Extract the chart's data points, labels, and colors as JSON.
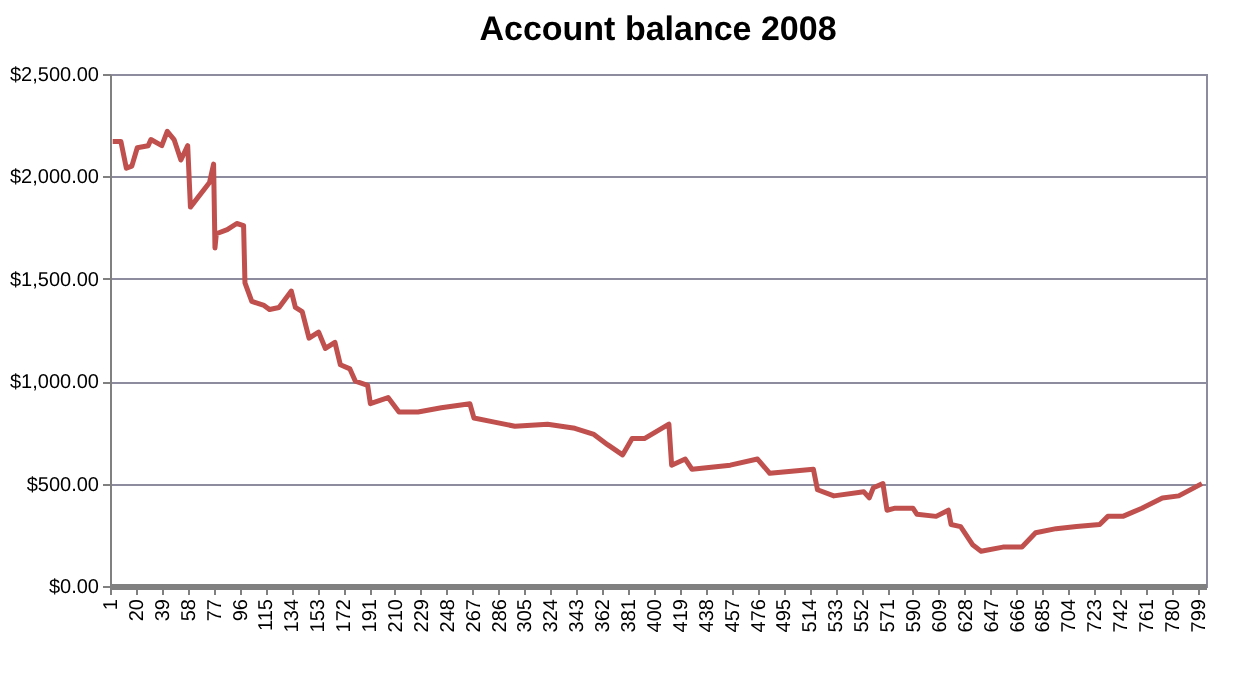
{
  "chart_data": {
    "type": "line",
    "title": "Account balance 2008",
    "x": [
      3,
      9,
      13,
      17,
      21,
      29,
      31,
      39,
      43,
      48,
      53,
      58,
      60,
      74,
      77,
      78,
      79,
      87,
      94,
      99,
      100,
      105,
      114,
      118,
      125,
      134,
      137,
      142,
      147,
      154,
      159,
      166,
      170,
      177,
      181,
      190,
      192,
      205,
      213,
      227,
      244,
      265,
      268,
      283,
      298,
      322,
      342,
      356,
      366,
      377,
      384,
      393,
      411,
      413,
      423,
      428,
      456,
      476,
      485,
      517,
      520,
      532,
      554,
      558,
      561,
      568,
      571,
      577,
      590,
      593,
      607,
      616,
      618,
      625,
      634,
      640,
      656,
      670,
      680,
      695,
      710,
      727,
      733,
      744,
      758,
      773,
      785,
      802
    ],
    "series": [
      {
        "color": "#c0504d",
        "values": [
          2170,
          2170,
          2040,
          2050,
          2140,
          2150,
          2180,
          2150,
          2220,
          2180,
          2080,
          2150,
          1850,
          1970,
          2060,
          1650,
          1720,
          1740,
          1770,
          1760,
          1480,
          1390,
          1370,
          1350,
          1360,
          1440,
          1360,
          1340,
          1210,
          1240,
          1160,
          1190,
          1080,
          1060,
          1000,
          980,
          890,
          920,
          850,
          850,
          870,
          890,
          820,
          800,
          780,
          790,
          770,
          740,
          690,
          640,
          720,
          720,
          790,
          590,
          620,
          570,
          590,
          620,
          550,
          570,
          470,
          440,
          460,
          430,
          480,
          500,
          370,
          380,
          380,
          350,
          340,
          370,
          300,
          290,
          200,
          170,
          190,
          190,
          260,
          280,
          290,
          300,
          340,
          340,
          380,
          430,
          440,
          500
        ]
      }
    ],
    "xlim": [
      1,
      805
    ],
    "xticks": [
      1,
      20,
      39,
      58,
      77,
      96,
      115,
      134,
      153,
      172,
      191,
      210,
      229,
      248,
      267,
      286,
      305,
      324,
      343,
      362,
      381,
      400,
      419,
      438,
      457,
      476,
      495,
      514,
      533,
      552,
      571,
      590,
      609,
      628,
      647,
      666,
      685,
      704,
      723,
      742,
      761,
      780,
      799
    ],
    "ylim": [
      0,
      2500
    ],
    "yticks": [
      {
        "value": 0,
        "label": "$0.00"
      },
      {
        "value": 500,
        "label": "$500.00"
      },
      {
        "value": 1000,
        "label": "$1,000.00"
      },
      {
        "value": 1500,
        "label": "$1,500.00"
      },
      {
        "value": 2000,
        "label": "$2,000.00"
      },
      {
        "value": 2500,
        "label": "$2,500.00"
      }
    ],
    "grid": "y",
    "marker": "none",
    "line_style": "solid"
  }
}
